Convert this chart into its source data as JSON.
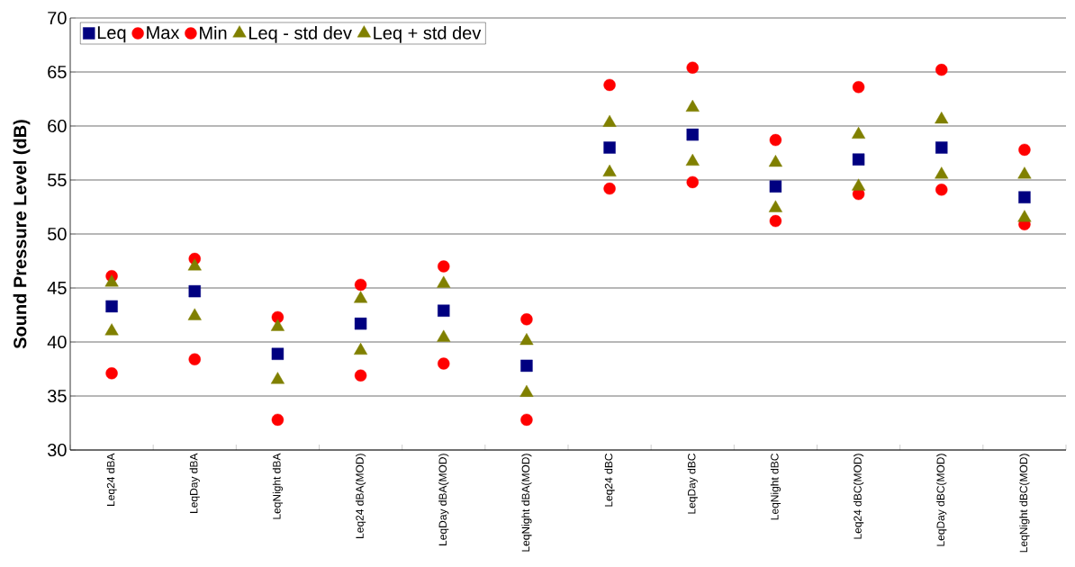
{
  "chart_data": {
    "type": "scatter",
    "ylabel": "Sound Pressure Level (dB)",
    "categories": [
      "Leq24 dBA",
      "LeqDay dBA",
      "LeqNight dBA",
      "Leq24 dBA(MOD)",
      "LeqDay dBA(MOD)",
      "LeqNight dBA(MOD)",
      "Leq24 dBC",
      "LeqDay dBC",
      "LeqNight dBC",
      "Leq24 dBC(MOD)",
      "LeqDay dBC(MOD)",
      "LeqNight dBC(MOD)"
    ],
    "series": [
      {
        "name": "Leq",
        "color": "#000080",
        "marker": "square",
        "values": [
          43.3,
          44.7,
          38.9,
          41.7,
          42.9,
          37.8,
          58.0,
          59.2,
          54.4,
          56.9,
          58.0,
          53.4
        ]
      },
      {
        "name": "Max",
        "color": "#ff0000",
        "marker": "circle",
        "values": [
          46.1,
          47.7,
          42.3,
          45.3,
          47.0,
          42.1,
          63.8,
          65.4,
          58.7,
          63.6,
          65.2,
          57.8
        ]
      },
      {
        "name": "Min",
        "color": "#ff0000",
        "marker": "circle",
        "values": [
          37.1,
          38.4,
          32.8,
          36.9,
          38.0,
          32.8,
          54.2,
          54.8,
          51.2,
          53.7,
          54.1,
          50.9
        ]
      },
      {
        "name": "Leq - std dev",
        "color": "#808000",
        "marker": "triangle",
        "values": [
          41.0,
          42.4,
          36.5,
          39.2,
          40.4,
          35.3,
          55.7,
          56.7,
          52.4,
          54.4,
          55.5,
          51.5
        ]
      },
      {
        "name": "Leq + std dev",
        "color": "#808000",
        "marker": "triangle",
        "values": [
          45.5,
          47.0,
          41.4,
          44.0,
          45.4,
          40.1,
          60.3,
          61.7,
          56.6,
          59.2,
          60.6,
          55.5
        ]
      }
    ],
    "ylim": [
      30,
      70
    ],
    "yticks": [
      30,
      35,
      40,
      45,
      50,
      55,
      60,
      65,
      70
    ],
    "grid": "y",
    "legend": "top left"
  }
}
